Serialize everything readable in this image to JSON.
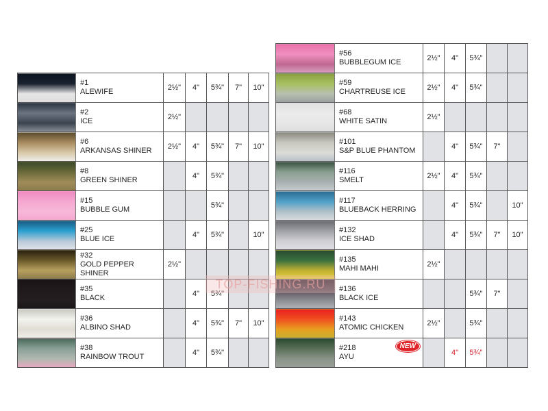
{
  "sizes_header": [
    "2½\"",
    "4\"",
    "5¾\"",
    "7\"",
    "10\""
  ],
  "left": [
    {
      "code": "#1",
      "name": "ALEWIFE",
      "sizes": [
        1,
        1,
        1,
        1,
        1
      ],
      "colors": [
        "#0d1520",
        "#1a2230",
        "#e6e6e6",
        "#dcdcdc"
      ]
    },
    {
      "code": "#2",
      "name": "ICE",
      "sizes": [
        1,
        0,
        0,
        0,
        0
      ],
      "colors": [
        "#2a3340",
        "#6b7480",
        "#3c4450",
        "#8a9098"
      ]
    },
    {
      "code": "#6",
      "name": "ARKANSAS SHINER",
      "sizes": [
        1,
        1,
        1,
        1,
        1
      ],
      "colors": [
        "#5a4a2c",
        "#a88c60",
        "#d8c8a8",
        "#eeeeea"
      ]
    },
    {
      "code": "#8",
      "name": "GREEN SHINER",
      "sizes": [
        0,
        1,
        1,
        0,
        0
      ],
      "colors": [
        "#3a4a2a",
        "#6a6a3a",
        "#a08c5a",
        "#8a7a4c"
      ]
    },
    {
      "code": "#15",
      "name": "BUBBLE GUM",
      "sizes": [
        0,
        0,
        1,
        0,
        0
      ],
      "colors": [
        "#f08ac0",
        "#f5a8d0",
        "#f7b8d8",
        "#f5a6d0"
      ]
    },
    {
      "code": "#25",
      "name": "BLUE ICE",
      "sizes": [
        0,
        1,
        1,
        0,
        1
      ],
      "colors": [
        "#1a5a80",
        "#2aa0d0",
        "#b8c8d8",
        "#e0e4ea"
      ]
    },
    {
      "code": "#32",
      "name": "GOLD PEPPER SHINER",
      "sizes": [
        1,
        0,
        0,
        0,
        0
      ],
      "colors": [
        "#2a2010",
        "#6a5a2a",
        "#b8a060",
        "#8a7a4a"
      ]
    },
    {
      "code": "#35",
      "name": "BLACK",
      "sizes": [
        0,
        1,
        1,
        0,
        0
      ],
      "colors": [
        "#1a1416",
        "#201a1c",
        "#241e20",
        "#1a1618"
      ]
    },
    {
      "code": "#36",
      "name": "ALBINO SHAD",
      "sizes": [
        0,
        1,
        1,
        1,
        1
      ],
      "colors": [
        "#c8c8c0",
        "#f2f2ee",
        "#e0dcd4",
        "#f0eeea"
      ]
    },
    {
      "code": "#38",
      "name": "RAINBOW TROUT",
      "sizes": [
        0,
        1,
        1,
        0,
        0
      ],
      "colors": [
        "#4a6a5a",
        "#8aa098",
        "#b0b8b0",
        "#e8a8c0"
      ]
    }
  ],
  "right": [
    {
      "code": "#56",
      "name": "BUBBLEGUM ICE",
      "sizes": [
        1,
        1,
        1,
        0,
        0
      ],
      "colors": [
        "#e870a8",
        "#f090c0",
        "#c06890",
        "#d8a0c0"
      ]
    },
    {
      "code": "#59",
      "name": "CHARTREUSE ICE",
      "sizes": [
        1,
        1,
        1,
        0,
        0
      ],
      "colors": [
        "#8aa040",
        "#a8c060",
        "#b8c0b0",
        "#9aa0a0"
      ]
    },
    {
      "code": "#68",
      "name": "WHITE SATIN",
      "sizes": [
        1,
        0,
        0,
        0,
        0
      ],
      "colors": [
        "#e0e0e0",
        "#ececec",
        "#e6e6e6",
        "#dedede"
      ]
    },
    {
      "code": "#101",
      "name": "S&P BLUE PHANTOM",
      "sizes": [
        0,
        1,
        1,
        1,
        0
      ],
      "colors": [
        "#8a8a80",
        "#c8c8c0",
        "#dcdcd8",
        "#b8c0c8"
      ]
    },
    {
      "code": "#116",
      "name": "SMELT",
      "sizes": [
        1,
        1,
        1,
        0,
        0
      ],
      "colors": [
        "#3a5040",
        "#8aa090",
        "#a8b0b0",
        "#c8ccd0"
      ]
    },
    {
      "code": "#117",
      "name": "BLUEBACK HERRING",
      "sizes": [
        0,
        1,
        1,
        0,
        1
      ],
      "colors": [
        "#2a6a90",
        "#50a0c8",
        "#b0c0c8",
        "#d8dce0"
      ]
    },
    {
      "code": "#132",
      "name": "ICE SHAD",
      "sizes": [
        0,
        1,
        1,
        1,
        1
      ],
      "colors": [
        "#6a6a70",
        "#a0a0a8",
        "#d0d0d4",
        "#e0e0e4"
      ]
    },
    {
      "code": "#135",
      "name": "MAHI MAHI",
      "sizes": [
        1,
        0,
        0,
        0,
        0
      ],
      "colors": [
        "#2a4a30",
        "#3a7040",
        "#c0b030",
        "#e8d040"
      ]
    },
    {
      "code": "#136",
      "name": "BLACK ICE",
      "sizes": [
        0,
        0,
        1,
        1,
        0
      ],
      "colors": [
        "#3a3038",
        "#5a505a",
        "#8a8a90",
        "#b0b4b8"
      ]
    },
    {
      "code": "#143",
      "name": "ATOMIC CHICKEN",
      "sizes": [
        1,
        0,
        1,
        0,
        0
      ],
      "colors": [
        "#e82020",
        "#f05020",
        "#e8a020",
        "#c8b030"
      ]
    },
    {
      "code": "#218",
      "name": "AYU",
      "sizes": [
        0,
        1,
        1,
        0,
        0
      ],
      "new": "NEW",
      "red": true,
      "colors": [
        "#2a4a30",
        "#5a7058",
        "#8a9488",
        "#9aa09a"
      ]
    }
  ],
  "watermark": "TOP-FISHING.RU",
  "accent_red": "#d8202a"
}
